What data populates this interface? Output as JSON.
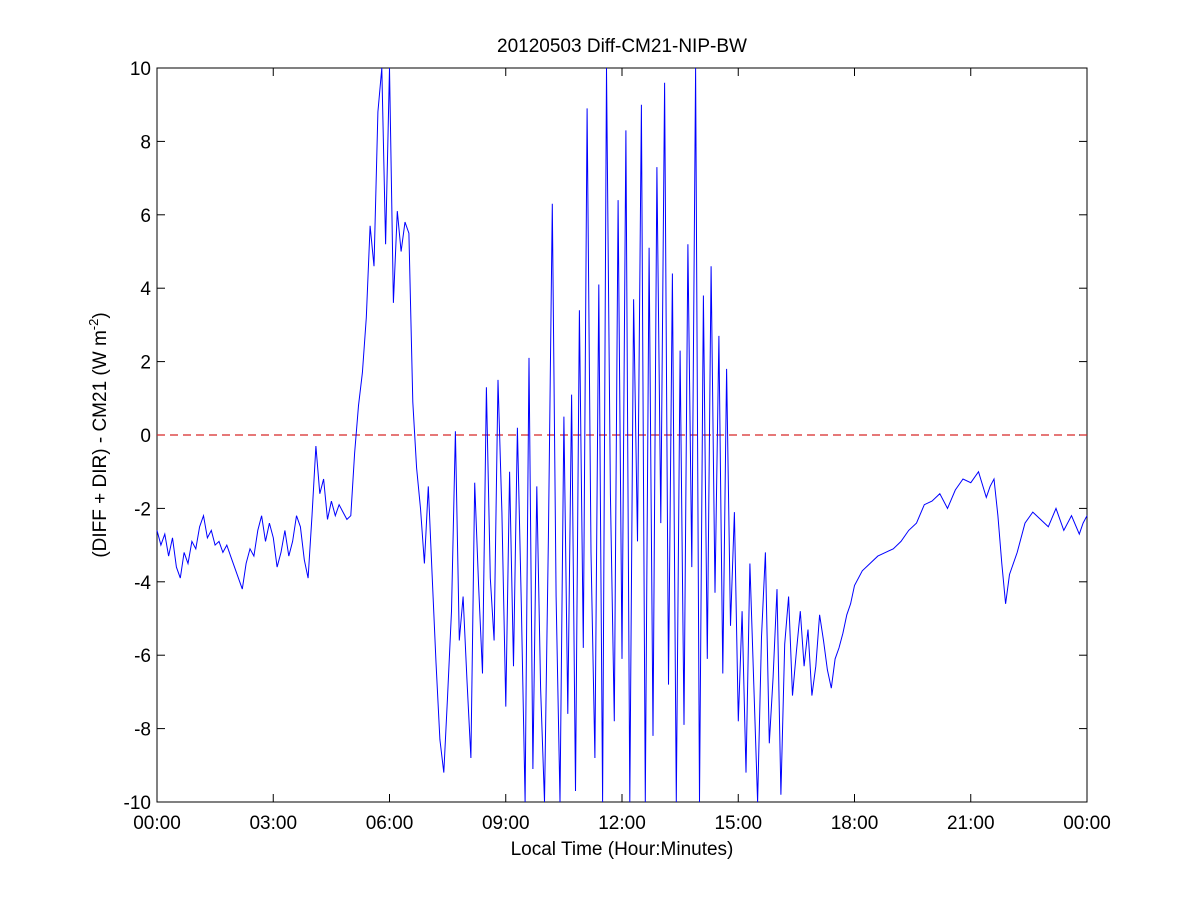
{
  "chart_data": {
    "type": "line",
    "title": "20120503 Diff-CM21-NIP-BW",
    "xlabel": "Local Time (Hour:Minutes)",
    "ylabel_main": "(DIFF + DIR) - CM21 (W m",
    "ylabel_sup": "-2",
    "ylabel_close": ")",
    "xlim_hours": [
      0,
      24
    ],
    "ylim": [
      -10,
      10
    ],
    "x_tick_hours": [
      0,
      3,
      6,
      9,
      12,
      15,
      18,
      21,
      24
    ],
    "x_tick_labels": [
      "00:00",
      "03:00",
      "06:00",
      "09:00",
      "12:00",
      "15:00",
      "18:00",
      "21:00",
      "00:00"
    ],
    "y_ticks": [
      -10,
      -8,
      -6,
      -4,
      -2,
      0,
      2,
      4,
      6,
      8,
      10
    ],
    "y_tick_labels": [
      "-10",
      "-8",
      "-6",
      "-4",
      "-2",
      "0",
      "2",
      "4",
      "6",
      "8",
      "10"
    ],
    "reference_line": {
      "y": 0,
      "style": "dashed",
      "color": "#d62728"
    },
    "grid": false,
    "series": [
      {
        "color": "#0000ff",
        "x_hours": [
          0.0,
          0.1,
          0.2,
          0.3,
          0.4,
          0.5,
          0.6,
          0.7,
          0.8,
          0.9,
          1.0,
          1.1,
          1.2,
          1.3,
          1.4,
          1.5,
          1.6,
          1.7,
          1.8,
          1.9,
          2.0,
          2.1,
          2.2,
          2.3,
          2.4,
          2.5,
          2.6,
          2.7,
          2.8,
          2.9,
          3.0,
          3.1,
          3.2,
          3.3,
          3.4,
          3.5,
          3.6,
          3.7,
          3.8,
          3.9,
          4.0,
          4.1,
          4.2,
          4.3,
          4.4,
          4.5,
          4.6,
          4.7,
          4.8,
          4.9,
          5.0,
          5.1,
          5.2,
          5.3,
          5.4,
          5.5,
          5.6,
          5.7,
          5.8,
          5.9,
          6.0,
          6.1,
          6.2,
          6.3,
          6.4,
          6.5,
          6.6,
          6.7,
          6.8,
          6.9,
          7.0,
          7.1,
          7.2,
          7.3,
          7.4,
          7.5,
          7.6,
          7.7,
          7.8,
          7.9,
          8.0,
          8.1,
          8.2,
          8.3,
          8.4,
          8.5,
          8.6,
          8.7,
          8.8,
          8.9,
          9.0,
          9.1,
          9.2,
          9.3,
          9.4,
          9.5,
          9.6,
          9.7,
          9.8,
          9.9,
          10.0,
          10.1,
          10.2,
          10.3,
          10.4,
          10.5,
          10.6,
          10.7,
          10.8,
          10.9,
          11.0,
          11.1,
          11.2,
          11.3,
          11.4,
          11.5,
          11.6,
          11.7,
          11.8,
          11.9,
          12.0,
          12.1,
          12.2,
          12.3,
          12.4,
          12.5,
          12.6,
          12.7,
          12.8,
          12.9,
          13.0,
          13.1,
          13.2,
          13.3,
          13.4,
          13.5,
          13.6,
          13.7,
          13.8,
          13.9,
          14.0,
          14.1,
          14.2,
          14.3,
          14.4,
          14.5,
          14.6,
          14.7,
          14.8,
          14.9,
          15.0,
          15.1,
          15.2,
          15.3,
          15.4,
          15.5,
          15.6,
          15.7,
          15.8,
          15.9,
          16.0,
          16.1,
          16.2,
          16.3,
          16.4,
          16.5,
          16.6,
          16.7,
          16.8,
          16.9,
          17.0,
          17.1,
          17.2,
          17.3,
          17.4,
          17.5,
          17.6,
          17.7,
          17.8,
          17.9,
          18.0,
          18.2,
          18.4,
          18.6,
          18.8,
          19.0,
          19.2,
          19.4,
          19.6,
          19.8,
          20.0,
          20.2,
          20.4,
          20.6,
          20.8,
          21.0,
          21.2,
          21.4,
          21.5,
          21.6,
          21.7,
          21.8,
          21.9,
          22.0,
          22.2,
          22.4,
          22.6,
          22.8,
          23.0,
          23.2,
          23.4,
          23.6,
          23.8,
          23.9,
          24.0
        ],
        "y": [
          -2.6,
          -3.0,
          -2.7,
          -3.3,
          -2.8,
          -3.6,
          -3.9,
          -3.2,
          -3.5,
          -2.9,
          -3.1,
          -2.5,
          -2.2,
          -2.8,
          -2.6,
          -3.0,
          -2.9,
          -3.2,
          -3.0,
          -3.3,
          -3.6,
          -3.9,
          -4.2,
          -3.5,
          -3.1,
          -3.3,
          -2.6,
          -2.2,
          -2.9,
          -2.4,
          -2.8,
          -3.6,
          -3.2,
          -2.6,
          -3.3,
          -2.9,
          -2.2,
          -2.5,
          -3.4,
          -3.9,
          -2.2,
          -0.3,
          -1.6,
          -1.2,
          -2.3,
          -1.8,
          -2.2,
          -1.9,
          -2.1,
          -2.3,
          -2.2,
          -0.5,
          0.8,
          1.7,
          3.2,
          5.7,
          4.6,
          8.8,
          10,
          5.2,
          10,
          3.6,
          6.1,
          5.0,
          5.8,
          5.5,
          0.9,
          -0.9,
          -2.0,
          -3.5,
          -1.4,
          -3.8,
          -6.2,
          -8.3,
          -9.2,
          -7.1,
          -4.8,
          0.1,
          -5.6,
          -4.4,
          -6.7,
          -8.8,
          -1.3,
          -4.1,
          -6.5,
          1.3,
          -3.9,
          -5.6,
          1.5,
          -2.1,
          -7.4,
          -1.0,
          -6.3,
          0.2,
          -4.6,
          -10,
          2.1,
          -9.1,
          -1.4,
          -6.9,
          -10,
          -2.8,
          6.3,
          -4.4,
          -10,
          0.5,
          -7.6,
          1.1,
          -9.7,
          3.4,
          -5.8,
          8.9,
          -3.2,
          -8.8,
          4.1,
          -10,
          10,
          -1.6,
          -7.8,
          6.4,
          -6.1,
          8.3,
          -10,
          3.7,
          -2.9,
          9.0,
          -10,
          5.1,
          -8.2,
          7.3,
          -2.4,
          9.6,
          -6.8,
          4.4,
          -10,
          2.3,
          -7.9,
          5.2,
          -3.6,
          10,
          -10,
          3.8,
          -6.1,
          4.6,
          -4.3,
          2.7,
          -6.5,
          1.8,
          -5.2,
          -2.1,
          -7.8,
          -4.8,
          -9.2,
          -3.5,
          -6.8,
          -10,
          -5.5,
          -3.2,
          -8.4,
          -6.6,
          -4.2,
          -9.8,
          -5.7,
          -4.4,
          -7.1,
          -5.9,
          -4.8,
          -6.3,
          -5.3,
          -7.1,
          -6.3,
          -4.9,
          -5.6,
          -6.4,
          -6.9,
          -6.1,
          -5.8,
          -5.4,
          -4.9,
          -4.6,
          -4.1,
          -3.7,
          -3.5,
          -3.3,
          -3.2,
          -3.1,
          -2.9,
          -2.6,
          -2.4,
          -1.9,
          -1.8,
          -1.6,
          -2.0,
          -1.5,
          -1.2,
          -1.3,
          -1.0,
          -1.7,
          -1.4,
          -1.2,
          -2.2,
          -3.5,
          -4.6,
          -3.8,
          -3.2,
          -2.4,
          -2.1,
          -2.3,
          -2.5,
          -2.0,
          -2.6,
          -2.2,
          -2.7,
          -2.4,
          -2.2
        ]
      }
    ]
  }
}
